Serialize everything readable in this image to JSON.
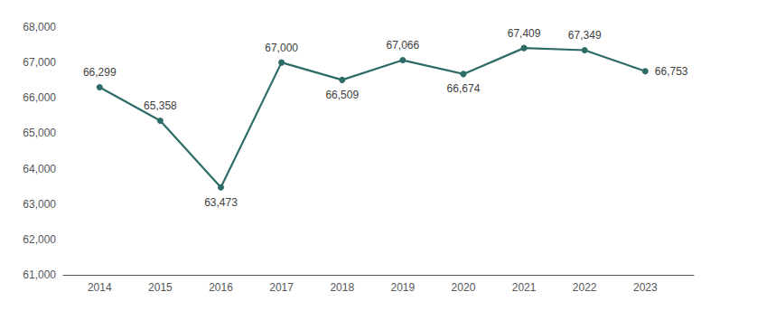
{
  "chart_data": {
    "type": "line",
    "x": [
      2014,
      2015,
      2016,
      2017,
      2018,
      2019,
      2020,
      2021,
      2022,
      2023
    ],
    "values": [
      66299,
      65358,
      63473,
      67000,
      66509,
      67066,
      66674,
      67409,
      67349,
      66753
    ],
    "value_labels": [
      "66,299",
      "65,358",
      "63,473",
      "67,000",
      "66,509",
      "67,066",
      "66,674",
      "67,409",
      "67,349",
      "66,753"
    ],
    "color": "#2d6b68",
    "marker": "circle",
    "xlim": [
      2013.4,
      2023.8
    ],
    "xticks": [
      2014,
      2015,
      2016,
      2017,
      2018,
      2019,
      2020,
      2021,
      2022,
      2023
    ],
    "ylim": [
      61000,
      68000
    ],
    "yticks": [
      {
        "value": 61000,
        "label": "61,000"
      },
      {
        "value": 62000,
        "label": "62,000"
      },
      {
        "value": 63000,
        "label": "63,000"
      },
      {
        "value": 64000,
        "label": "64,000"
      },
      {
        "value": 65000,
        "label": "65,000"
      },
      {
        "value": 66000,
        "label": "66,000"
      },
      {
        "value": 67000,
        "label": "67,000"
      },
      {
        "value": 68000,
        "label": "68,000"
      }
    ],
    "grid": false,
    "data_labels": true
  }
}
